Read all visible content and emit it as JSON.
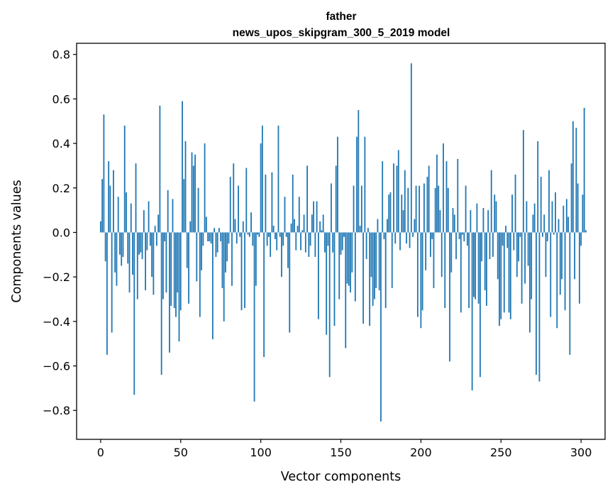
{
  "chart_data": {
    "type": "bar",
    "title": "father",
    "subtitle": "news_upos_skipgram_300_5_2019 model",
    "xlabel": "Vector components",
    "ylabel": "Components values",
    "xlim": [
      -15,
      315
    ],
    "ylim": [
      -0.93,
      0.85
    ],
    "xticks": [
      0,
      50,
      100,
      150,
      200,
      250,
      300
    ],
    "xtick_labels": [
      "0",
      "50",
      "100",
      "150",
      "200",
      "250",
      "300"
    ],
    "yticks": [
      -0.8,
      -0.6,
      -0.4,
      -0.2,
      0.0,
      0.2,
      0.4,
      0.6,
      0.8
    ],
    "ytick_labels": [
      "−0.8",
      "−0.6",
      "−0.4",
      "−0.2",
      "0.0",
      "0.2",
      "0.4",
      "0.6",
      "0.8"
    ],
    "grid": false,
    "bar_color": "#1f77b4",
    "series": [
      {
        "values": [
          0.05,
          0.24,
          0.53,
          -0.13,
          -0.55,
          0.32,
          0.21,
          -0.45,
          0.28,
          -0.18,
          -0.24,
          0.16,
          -0.1,
          -0.15,
          -0.11,
          0.48,
          0.18,
          -0.14,
          -0.27,
          0.13,
          -0.19,
          -0.73,
          0.31,
          -0.3,
          -0.1,
          -0.09,
          -0.12,
          0.1,
          -0.26,
          -0.08,
          0.14,
          -0.06,
          -0.2,
          -0.28,
          0.03,
          -0.06,
          0.08,
          0.57,
          -0.64,
          -0.3,
          -0.04,
          -0.27,
          0.19,
          -0.54,
          -0.33,
          0.15,
          -0.34,
          -0.38,
          -0.27,
          -0.49,
          -0.35,
          0.59,
          0.24,
          0.41,
          -0.16,
          -0.32,
          0.05,
          0.36,
          0.3,
          0.35,
          -0.22,
          0.2,
          -0.38,
          -0.17,
          -0.06,
          0.4,
          0.07,
          -0.04,
          -0.04,
          -0.05,
          -0.48,
          0.02,
          -0.11,
          -0.09,
          0.02,
          -0.04,
          -0.25,
          -0.4,
          -0.18,
          -0.13,
          -0.05,
          0.25,
          -0.24,
          0.31,
          0.06,
          -0.05,
          0.21,
          -0.02,
          -0.35,
          0.05,
          -0.34,
          0.29,
          -0.01,
          -0.02,
          0.09,
          -0.06,
          -0.76,
          -0.24,
          -0.01,
          -0.02,
          0.4,
          0.48,
          -0.56,
          0.26,
          -0.06,
          -0.02,
          -0.11,
          0.27,
          0.03,
          -0.03,
          -0.08,
          0.48,
          -0.02,
          -0.2,
          -0.06,
          0.16,
          -0.02,
          -0.16,
          -0.45,
          0.04,
          0.26,
          0.06,
          -0.08,
          0.03,
          0.16,
          -0.08,
          0.01,
          0.08,
          -0.09,
          0.3,
          -0.11,
          -0.06,
          0.08,
          0.14,
          -0.11,
          0.14,
          -0.39,
          0.05,
          0.01,
          0.08,
          -0.09,
          -0.46,
          -0.06,
          -0.65,
          0.22,
          -0.09,
          -0.42,
          0.3,
          0.43,
          -0.3,
          -0.1,
          -0.08,
          -0.02,
          -0.52,
          -0.23,
          -0.24,
          -0.27,
          -0.18,
          0.21,
          -0.31,
          0.43,
          0.55,
          0.03,
          0.21,
          -0.41,
          0.43,
          -0.12,
          0.02,
          -0.42,
          -0.2,
          -0.33,
          -0.3,
          -0.25,
          0.06,
          -0.26,
          -0.85,
          0.32,
          -0.03,
          -0.34,
          0.06,
          0.17,
          0.18,
          -0.25,
          0.31,
          -0.05,
          0.3,
          0.37,
          -0.08,
          0.17,
          0.1,
          0.28,
          -0.05,
          0.2,
          -0.07,
          0.76,
          -0.02,
          0.06,
          0.21,
          -0.38,
          0.21,
          -0.43,
          -0.35,
          0.22,
          -0.17,
          0.25,
          0.3,
          -0.11,
          -0.03,
          -0.25,
          0.2,
          0.35,
          0.21,
          0.1,
          -0.2,
          0.4,
          -0.34,
          0.32,
          0.2,
          -0.58,
          -0.18,
          0.11,
          0.08,
          -0.12,
          0.33,
          -0.03,
          -0.36,
          -0.01,
          -0.04,
          0.21,
          -0.06,
          -0.34,
          0.1,
          -0.71,
          -0.29,
          -0.3,
          0.13,
          -0.32,
          -0.65,
          -0.13,
          0.11,
          -0.26,
          -0.33,
          0.1,
          -0.12,
          0.28,
          -0.11,
          0.17,
          0.14,
          -0.21,
          -0.42,
          -0.39,
          -0.06,
          -0.36,
          0.03,
          -0.07,
          -0.36,
          -0.39,
          0.17,
          -0.08,
          0.26,
          -0.2,
          -0.13,
          -0.02,
          -0.32,
          0.46,
          -0.23,
          0.14,
          -0.15,
          -0.45,
          -0.3,
          0.08,
          0.13,
          -0.64,
          0.41,
          -0.67,
          0.25,
          -0.02,
          0.08,
          -0.2,
          -0.04,
          0.28,
          -0.38,
          0.14,
          -0.01,
          0.18,
          -0.43,
          0.06,
          -0.28,
          -0.21,
          0.12,
          -0.35,
          0.15,
          0.07,
          -0.55,
          0.31,
          0.5,
          -0.21,
          0.47,
          0.22,
          -0.32,
          -0.06,
          0.17,
          0.56,
          0.01
        ]
      }
    ]
  }
}
